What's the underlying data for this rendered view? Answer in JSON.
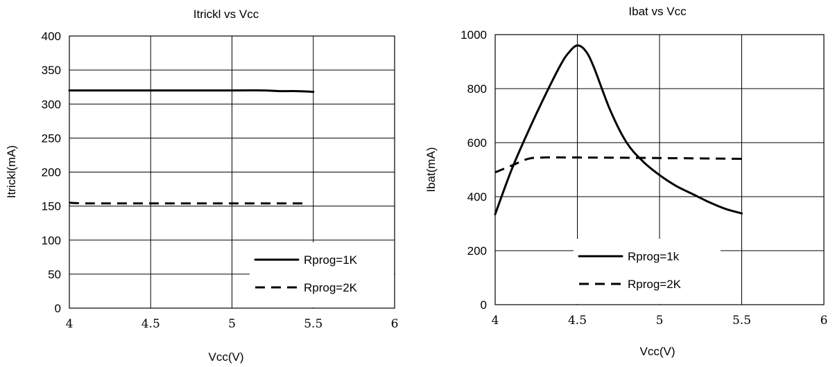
{
  "chart_data": [
    {
      "type": "line",
      "title": "Itrickl  vs  Vcc",
      "xlabel": "Vcc(V)",
      "ylabel": "Itrickl(mA)",
      "xlim": [
        4,
        6
      ],
      "ylim": [
        0,
        400
      ],
      "x_ticks": [
        4,
        4.5,
        5,
        5.5,
        6
      ],
      "x_tick_labels": [
        "4",
        "4.5",
        "5",
        "5.5",
        "6"
      ],
      "y_ticks": [
        0,
        50,
        100,
        150,
        200,
        250,
        300,
        350,
        400
      ],
      "y_tick_labels": [
        "0",
        "50",
        "100",
        "150",
        "200",
        "250",
        "300",
        "350",
        "400"
      ],
      "grid": true,
      "legend_position": "bottom-right",
      "series": [
        {
          "name": "Rprog=1K",
          "style": "solid",
          "x": [
            4.0,
            4.5,
            5.0,
            5.2,
            5.3,
            5.4,
            5.5
          ],
          "y": [
            320,
            320,
            320,
            320,
            319,
            319,
            318
          ]
        },
        {
          "name": "Rprog=2K",
          "style": "dashed",
          "x": [
            4.0,
            4.1,
            4.5,
            5.0,
            5.45
          ],
          "y": [
            155,
            154,
            154,
            154,
            154
          ]
        }
      ]
    },
    {
      "type": "line",
      "title": "Ibat  vs  Vcc",
      "xlabel": "Vcc(V)",
      "ylabel": "Ibat(mA)",
      "xlim": [
        4,
        6
      ],
      "ylim": [
        0,
        1000
      ],
      "x_ticks": [
        4,
        4.5,
        5,
        5.5,
        6
      ],
      "x_tick_labels": [
        "4",
        "4.5",
        "5",
        "5.5",
        "6"
      ],
      "y_ticks": [
        0,
        200,
        400,
        600,
        800,
        1000
      ],
      "y_tick_labels": [
        "0",
        "200",
        "400",
        "600",
        "800",
        "1000"
      ],
      "grid": true,
      "legend_position": "bottom-center",
      "series": [
        {
          "name": "Rprog=1k",
          "style": "solid",
          "x": [
            4.0,
            4.1,
            4.2,
            4.3,
            4.4,
            4.45,
            4.5,
            4.55,
            4.6,
            4.7,
            4.8,
            4.9,
            5.0,
            5.1,
            5.2,
            5.3,
            5.4,
            5.5
          ],
          "y": [
            335,
            500,
            640,
            770,
            890,
            935,
            960,
            940,
            880,
            720,
            600,
            530,
            480,
            440,
            410,
            380,
            355,
            338
          ]
        },
        {
          "name": "Rprog=2K",
          "style": "dashed",
          "x": [
            4.0,
            4.1,
            4.2,
            4.3,
            4.5,
            5.0,
            5.5
          ],
          "y": [
            490,
            515,
            540,
            545,
            545,
            543,
            540
          ]
        }
      ]
    }
  ]
}
